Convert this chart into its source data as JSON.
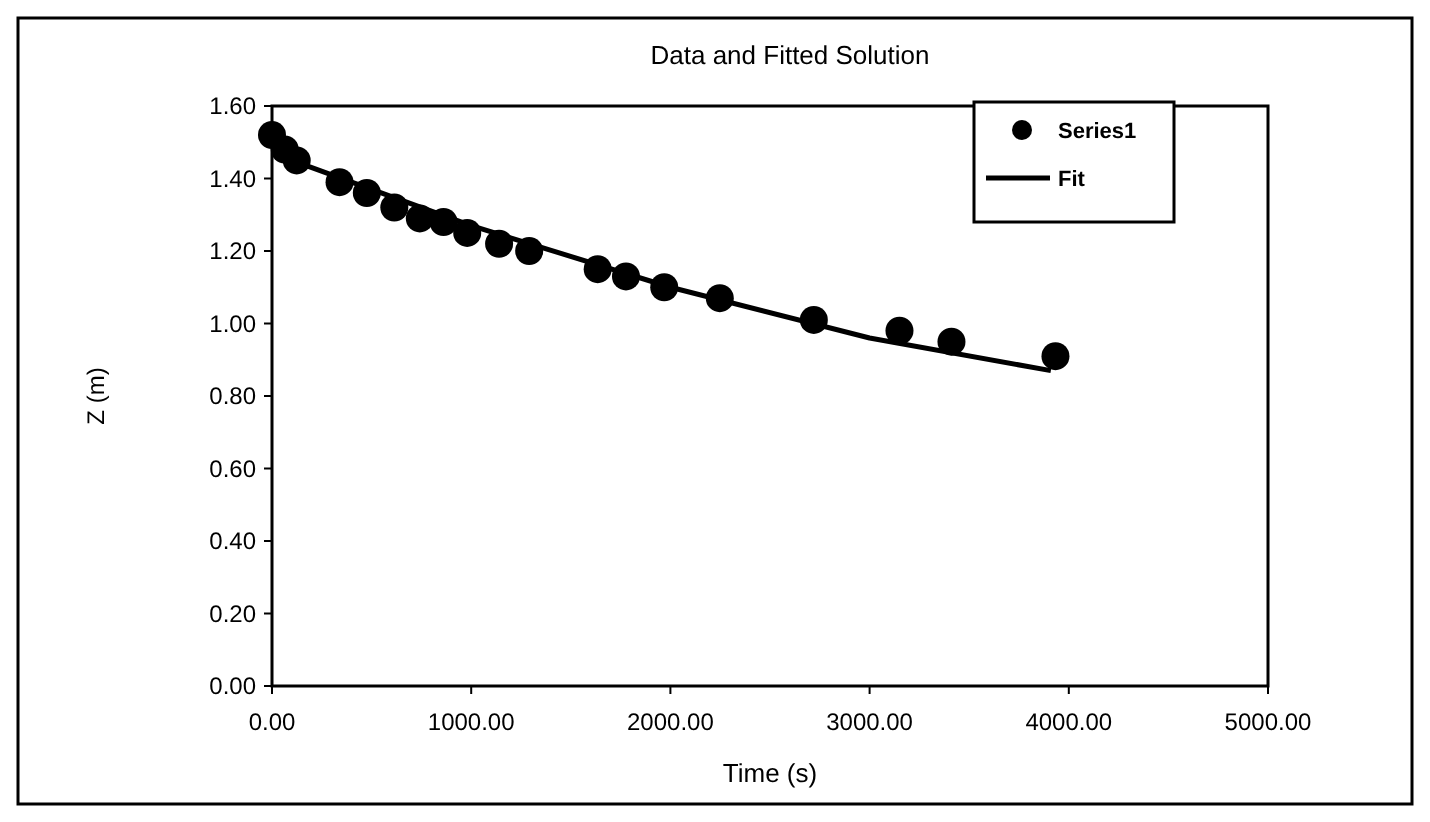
{
  "chart_data": {
    "type": "scatter",
    "title": "Data and Fitted Solution",
    "xlabel": "Time (s)",
    "ylabel": "Z (m)",
    "xlim": [
      0,
      5000
    ],
    "xticks": [
      {
        "value": 0,
        "label": "0.00"
      },
      {
        "value": 1000,
        "label": "1000.00"
      },
      {
        "value": 2000,
        "label": "2000.00"
      },
      {
        "value": 3000,
        "label": "3000.00"
      },
      {
        "value": 4000,
        "label": "4000.00"
      },
      {
        "value": 5000,
        "label": "5000.00"
      }
    ],
    "ylim": [
      0,
      1.6
    ],
    "yticks": [
      {
        "value": 0,
        "label": "0.00"
      },
      {
        "value": 0.2,
        "label": "0.20"
      },
      {
        "value": 0.4,
        "label": "0.40"
      },
      {
        "value": 0.6,
        "label": "0.60"
      },
      {
        "value": 0.8,
        "label": "0.80"
      },
      {
        "value": 1,
        "label": "1.00"
      },
      {
        "value": 1.2,
        "label": "1.20"
      },
      {
        "value": 1.4,
        "label": "1.40"
      },
      {
        "value": 1.6,
        "label": "1.60"
      }
    ],
    "grid": false,
    "legend": "top right",
    "series": [
      {
        "name": "Series1",
        "marker": "circle",
        "color": "#000000",
        "x": [
          0,
          64,
          124,
          339,
          476,
          614,
          742,
          861,
          980,
          1140,
          1291,
          1635,
          1777,
          1969,
          2248,
          2720,
          3150,
          3411,
          3933
        ],
        "values": [
          1.52,
          1.48,
          1.45,
          1.39,
          1.36,
          1.32,
          1.29,
          1.28,
          1.25,
          1.22,
          1.2,
          1.15,
          1.13,
          1.1,
          1.07,
          1.01,
          0.98,
          0.95,
          0.91
        ]
      },
      {
        "name": "Fit",
        "type": "line",
        "marker": "none",
        "line_style": "solid",
        "color": "#000000",
        "x": [
          0,
          1000,
          2000,
          3000,
          3910
        ],
        "values": [
          1.47,
          1.27,
          1.1,
          0.96,
          0.87
        ]
      }
    ]
  }
}
